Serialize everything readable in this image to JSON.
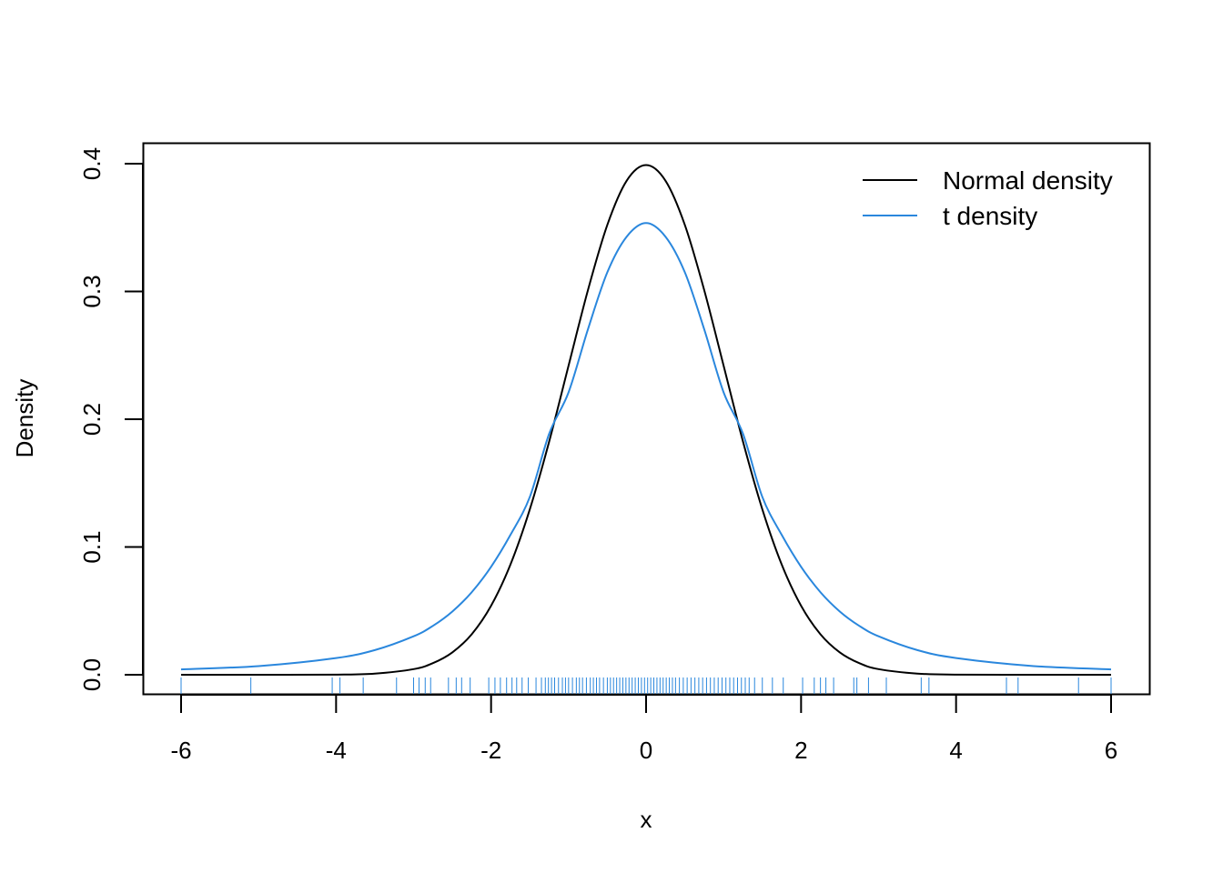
{
  "chart_data": {
    "type": "line",
    "title": "",
    "xlabel": "x",
    "ylabel": "Density",
    "xlim": [
      -6,
      6
    ],
    "ylim": [
      0,
      0.4
    ],
    "x_ticks": [
      -6,
      -4,
      -2,
      0,
      2,
      4,
      6
    ],
    "x_tick_labels": [
      "-6",
      "-4",
      "-2",
      "0",
      "2",
      "4",
      "6"
    ],
    "y_ticks": [
      0,
      0.1,
      0.2,
      0.3,
      0.4
    ],
    "y_tick_labels": [
      "0.0",
      "0.1",
      "0.2",
      "0.3",
      "0.4"
    ],
    "grid": false,
    "legend": {
      "position": "top-right",
      "entries": [
        "Normal density",
        "t density"
      ]
    },
    "series": [
      {
        "name": "Normal density",
        "color": "#000000",
        "x": [
          -6,
          -5,
          -4,
          -3.5,
          -3,
          -2.75,
          -2.5,
          -2.25,
          -2,
          -1.75,
          -1.5,
          -1.25,
          -1,
          -0.75,
          -0.5,
          -0.25,
          0,
          0.25,
          0.5,
          0.75,
          1,
          1.25,
          1.5,
          1.75,
          2,
          2.25,
          2.5,
          2.75,
          3,
          3.5,
          4,
          5,
          6
        ],
        "y": [
          0,
          0,
          0.0001,
          0.0009,
          0.0044,
          0.0091,
          0.0175,
          0.0317,
          0.054,
          0.0863,
          0.1295,
          0.1826,
          0.242,
          0.3011,
          0.3521,
          0.3867,
          0.3989,
          0.3867,
          0.3521,
          0.3011,
          0.242,
          0.1826,
          0.1295,
          0.0863,
          0.054,
          0.0317,
          0.0175,
          0.0091,
          0.0044,
          0.0009,
          0.0001,
          0,
          0
        ]
      },
      {
        "name": "t density",
        "color": "#2a87dd",
        "x": [
          -6,
          -5,
          -4,
          -3.5,
          -3,
          -2.75,
          -2.5,
          -2.25,
          -2,
          -1.75,
          -1.5,
          -1.25,
          -1,
          -0.75,
          -0.5,
          -0.25,
          0,
          0.25,
          0.5,
          0.75,
          1,
          1.25,
          1.5,
          1.75,
          2,
          2.25,
          2.5,
          2.75,
          3,
          3.5,
          4,
          5,
          6
        ],
        "y": [
          0.0042,
          0.0068,
          0.0131,
          0.0193,
          0.0301,
          0.0383,
          0.0495,
          0.0646,
          0.0845,
          0.1095,
          0.1392,
          0.1887,
          0.2211,
          0.2704,
          0.315,
          0.3429,
          0.3536,
          0.3429,
          0.315,
          0.2704,
          0.2211,
          0.1887,
          0.1392,
          0.1095,
          0.0845,
          0.0646,
          0.0495,
          0.0383,
          0.0301,
          0.0193,
          0.0131,
          0.0068,
          0.0042
        ]
      }
    ],
    "rug": {
      "color": "#2a87dd",
      "values": [
        -6,
        -5.1,
        -4.05,
        -3.95,
        -3.65,
        -3.22,
        -3.0,
        -2.93,
        -2.85,
        -2.78,
        -2.55,
        -2.45,
        -2.38,
        -2.27,
        -2.03,
        -1.95,
        -1.88,
        -1.8,
        -1.73,
        -1.67,
        -1.6,
        -1.52,
        -1.42,
        -1.35,
        -1.3,
        -1.26,
        -1.22,
        -1.18,
        -1.13,
        -1.08,
        -1.04,
        -1.0,
        -0.95,
        -0.9,
        -0.86,
        -0.82,
        -0.77,
        -0.72,
        -0.68,
        -0.64,
        -0.6,
        -0.55,
        -0.5,
        -0.46,
        -0.42,
        -0.38,
        -0.34,
        -0.3,
        -0.26,
        -0.22,
        -0.18,
        -0.14,
        -0.1,
        -0.06,
        -0.02,
        0.02,
        0.06,
        0.1,
        0.14,
        0.18,
        0.22,
        0.26,
        0.3,
        0.34,
        0.38,
        0.43,
        0.48,
        0.53,
        0.58,
        0.63,
        0.68,
        0.73,
        0.78,
        0.83,
        0.88,
        0.93,
        0.98,
        1.03,
        1.08,
        1.13,
        1.18,
        1.23,
        1.28,
        1.33,
        1.4,
        1.5,
        1.63,
        1.77,
        2.02,
        2.17,
        2.25,
        2.32,
        2.42,
        2.68,
        2.72,
        2.87,
        3.1,
        3.55,
        3.65,
        4.65,
        4.8,
        5.58,
        6
      ]
    }
  }
}
